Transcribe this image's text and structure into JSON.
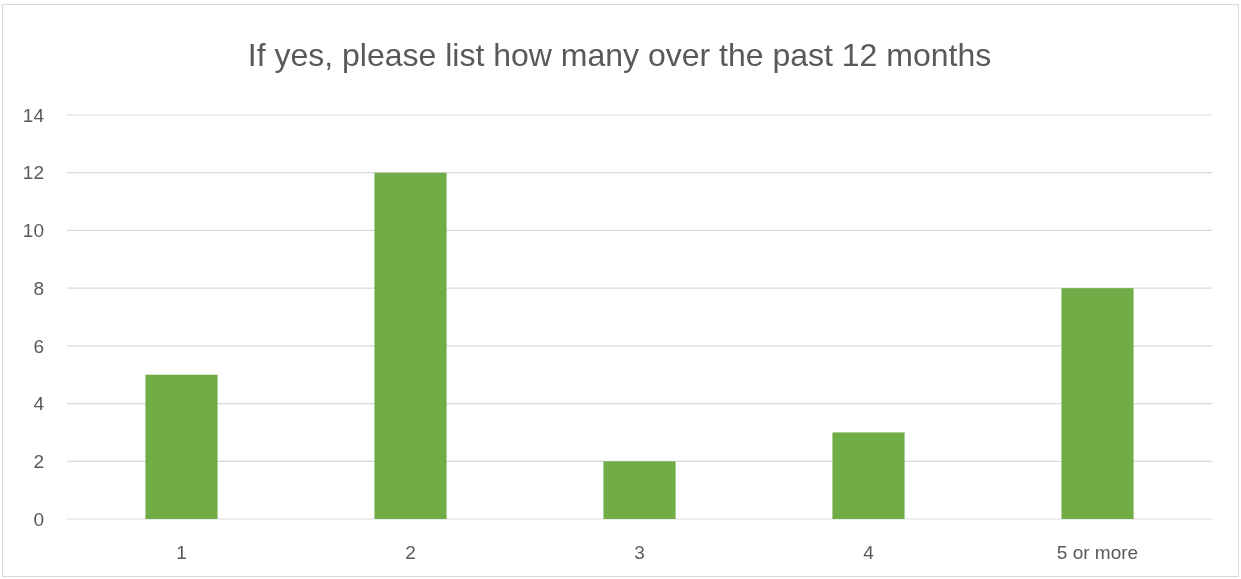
{
  "chart_data": {
    "type": "bar",
    "title": "If yes, please list how many over the past 12 months",
    "categories": [
      "1",
      "2",
      "3",
      "4",
      "5 or more"
    ],
    "values": [
      5,
      12,
      2,
      3,
      8
    ],
    "color": "#70ad47",
    "ylim": [
      0,
      14
    ],
    "yticks": [
      0,
      2,
      4,
      6,
      8,
      10,
      12,
      14
    ],
    "grid": "y"
  }
}
